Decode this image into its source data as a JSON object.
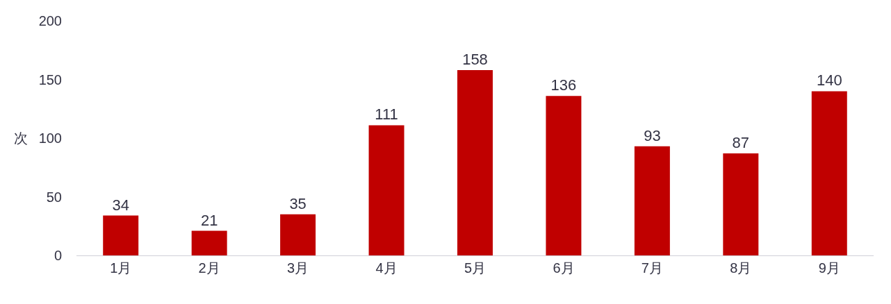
{
  "chart_data": {
    "type": "bar",
    "ylabel": "次",
    "categories": [
      "1月",
      "2月",
      "3月",
      "4月",
      "5月",
      "6月",
      "7月",
      "8月",
      "9月"
    ],
    "values": [
      34,
      21,
      35,
      111,
      158,
      136,
      93,
      87,
      140
    ],
    "color": "#c00000",
    "ylim": [
      0,
      200
    ],
    "yticks": [
      0,
      50,
      100,
      150,
      200
    ],
    "data_labels": true,
    "grid": false,
    "legend": false
  }
}
